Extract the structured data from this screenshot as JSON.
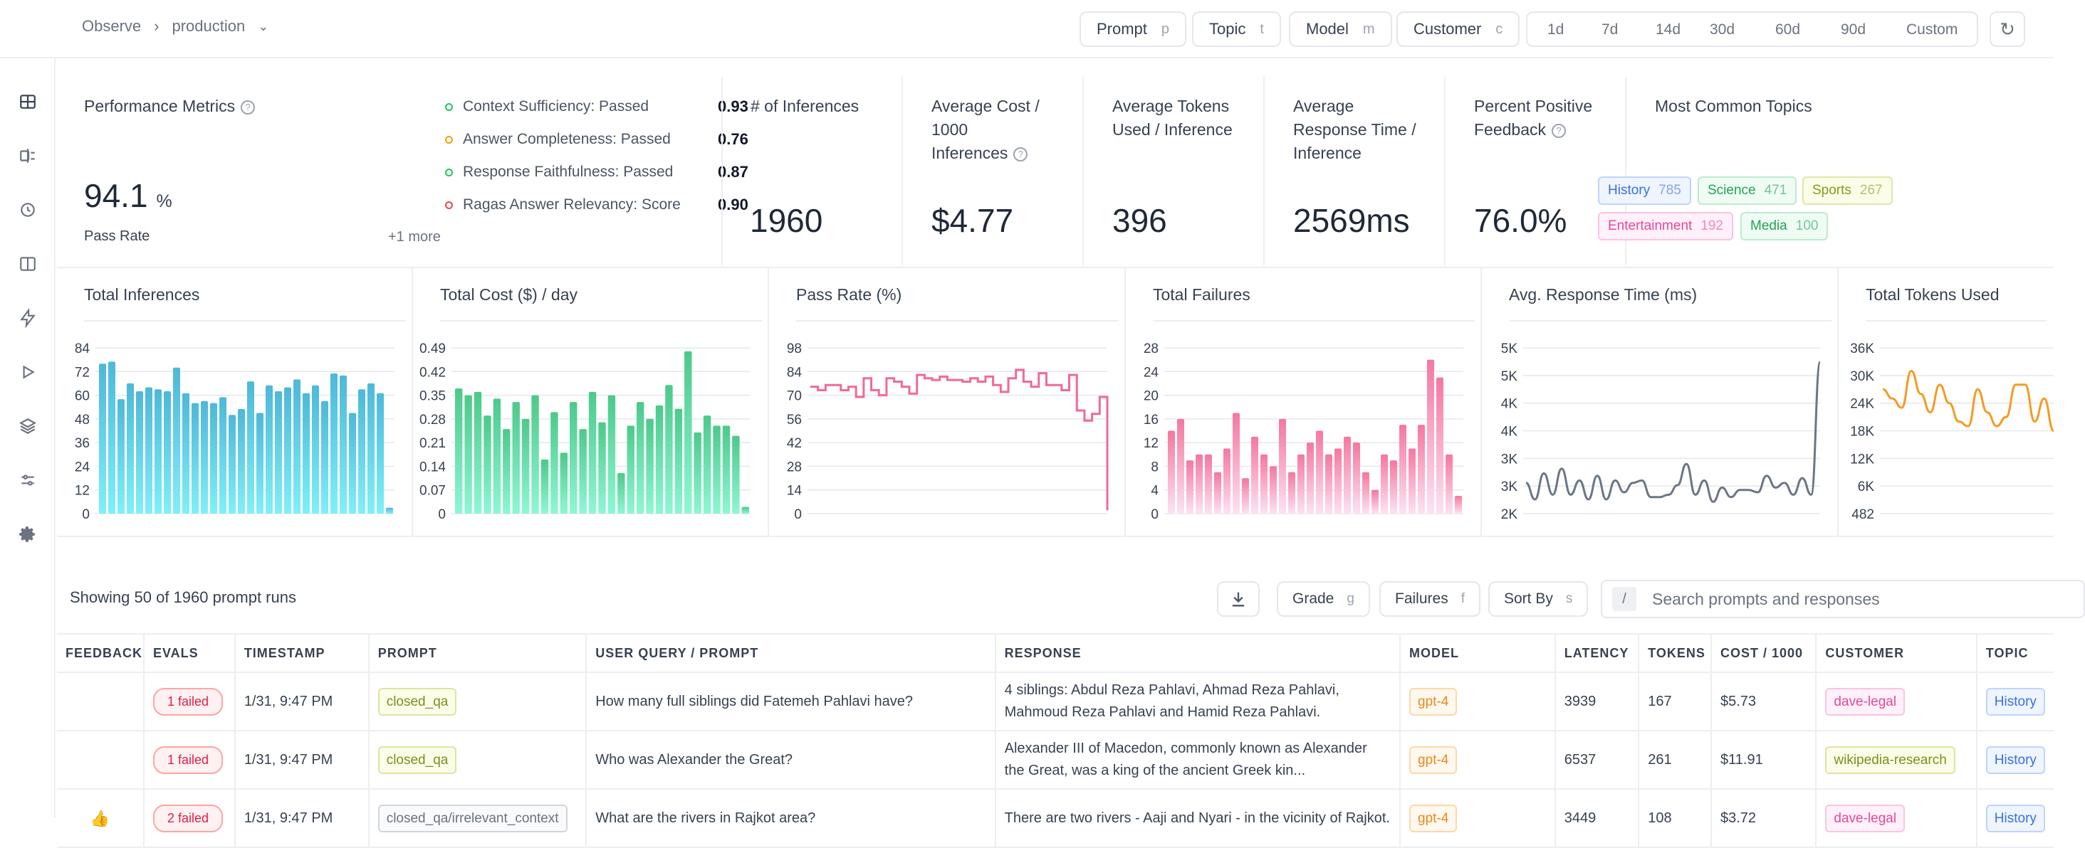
{
  "breadcrumb": {
    "root": "Observe",
    "project": "production"
  },
  "filters": [
    {
      "label": "Prompt",
      "key": "p"
    },
    {
      "label": "Topic",
      "key": "t"
    },
    {
      "label": "Model",
      "key": "m"
    },
    {
      "label": "Customer",
      "key": "c"
    }
  ],
  "ranges": [
    "1d",
    "7d",
    "14d",
    "30d",
    "60d",
    "90d",
    "Custom"
  ],
  "performance": {
    "title": "Performance Metrics",
    "pass_rate": "94.1",
    "pass_rate_unit": "%",
    "pass_rate_label": "Pass Rate",
    "evals": [
      {
        "label": "Context Sufficiency: Passed",
        "score": "0.93",
        "color": "#22c55e"
      },
      {
        "label": "Answer Completeness: Passed",
        "score": "0.76",
        "color": "#f59e0b"
      },
      {
        "label": "Response Faithfulness: Passed",
        "score": "0.87",
        "color": "#22c55e"
      },
      {
        "label": "Ragas Answer Relevancy: Score",
        "score": "0.90",
        "color": "#ef4444"
      }
    ],
    "more": "+1 more"
  },
  "stats": {
    "inferences": {
      "title": "# of Inferences",
      "value": "1960"
    },
    "avg_cost": {
      "title_1": "Average Cost /",
      "title_2": "1000",
      "title_3": "Inferences",
      "value": "$4.77"
    },
    "avg_tokens": {
      "title_1": "Average Tokens",
      "title_2": "Used / Inference",
      "value": "396"
    },
    "avg_response": {
      "title_1": "Average",
      "title_2": "Response Time /",
      "title_3": "Inference",
      "value": "2569ms"
    },
    "positive_feedback": {
      "title_1": "Percent Positive",
      "title_2": "Feedback",
      "value": "76.0%"
    }
  },
  "topics": {
    "title": "Most Common Topics",
    "items": [
      {
        "name": "History",
        "count": "785",
        "color": "#3b6fe0",
        "bg": "#eff5ff",
        "border": "#bfd4fd"
      },
      {
        "name": "Science",
        "count": "471",
        "color": "#22a355",
        "bg": "#effcf4",
        "border": "#bdebcf"
      },
      {
        "name": "Sports",
        "count": "267",
        "color": "#8a9a1a",
        "bg": "#fbfde8",
        "border": "#dde8a8"
      },
      {
        "name": "Entertainment",
        "count": "192",
        "color": "#e5489b",
        "bg": "#fff0f9",
        "border": "#f9c4e4"
      },
      {
        "name": "Media",
        "count": "100",
        "color": "#22a355",
        "bg": "#effcf4",
        "border": "#bdebcf"
      }
    ]
  },
  "chart_data": [
    {
      "type": "bar",
      "title": "Total Inferences",
      "color_top": "#4db8d8",
      "color_bottom": "#7ff0f8",
      "yticks": [
        "0",
        "12",
        "24",
        "36",
        "48",
        "60",
        "72",
        "84"
      ],
      "ylim": [
        0,
        84
      ],
      "values": [
        76,
        77,
        58,
        66,
        62,
        64,
        63,
        62,
        74,
        61,
        56,
        57,
        56,
        59,
        50,
        53,
        67,
        51,
        65,
        62,
        64,
        68,
        61,
        65,
        57,
        71,
        70,
        51,
        63,
        66,
        61,
        3
      ]
    },
    {
      "type": "bar",
      "title": "Total Cost ($) / day",
      "color_top": "#4cc98a",
      "color_bottom": "#8ef7d4",
      "yticks": [
        "0",
        "0.07",
        "0.14",
        "0.21",
        "0.28",
        "0.35",
        "0.42",
        "0.49"
      ],
      "ylim": [
        0,
        0.49
      ],
      "values": [
        0.37,
        0.35,
        0.36,
        0.29,
        0.34,
        0.25,
        0.33,
        0.28,
        0.35,
        0.16,
        0.3,
        0.18,
        0.33,
        0.25,
        0.36,
        0.27,
        0.35,
        0.12,
        0.26,
        0.33,
        0.28,
        0.32,
        0.38,
        0.31,
        0.48,
        0.24,
        0.29,
        0.26,
        0.26,
        0.23,
        0.02
      ]
    },
    {
      "type": "line",
      "title": "Pass Rate (%)",
      "color": "#f06a96",
      "step": true,
      "yticks": [
        "0",
        "14",
        "28",
        "42",
        "56",
        "70",
        "84",
        "98"
      ],
      "ylim": [
        0,
        98
      ],
      "values": [
        75,
        73,
        76,
        76,
        73,
        75,
        69,
        80,
        73,
        70,
        80,
        78,
        75,
        71,
        82,
        80,
        79,
        81,
        79,
        79,
        78,
        80,
        78,
        81,
        76,
        72,
        80,
        85,
        78,
        75,
        83,
        76,
        76,
        73,
        82,
        61,
        55,
        59,
        69,
        2
      ]
    },
    {
      "type": "bar",
      "title": "Total Failures",
      "color_top": "#f5779e",
      "color_bottom": "#fde2f3",
      "yticks": [
        "0",
        "4",
        "8",
        "12",
        "16",
        "20",
        "24",
        "28"
      ],
      "ylim": [
        0,
        28
      ],
      "values": [
        14,
        16,
        9,
        10,
        10,
        7,
        11,
        17,
        6,
        13,
        10,
        8,
        16,
        7,
        10,
        12,
        14,
        10,
        11,
        13,
        12,
        7,
        4,
        10,
        9,
        15,
        11,
        15,
        26,
        23,
        10,
        3
      ]
    },
    {
      "type": "line",
      "title": "Avg. Response Time (ms)",
      "color": "#6b7685",
      "step": false,
      "yticks": [
        "2K",
        "3K",
        "3K",
        "4K",
        "4K",
        "5K",
        "5K"
      ],
      "ylim": [
        2,
        5.5
      ],
      "values": [
        2.65,
        2.3,
        2.85,
        2.4,
        2.95,
        2.4,
        2.7,
        2.3,
        2.8,
        2.3,
        2.7,
        2.45,
        2.65,
        2.7,
        2.35,
        2.35,
        2.4,
        2.6,
        3.05,
        2.4,
        2.7,
        2.25,
        2.55,
        2.35,
        2.5,
        2.5,
        2.45,
        2.8,
        2.55,
        2.65,
        2.4,
        2.75,
        2.4,
        5.2
      ]
    },
    {
      "type": "line",
      "title": "Total Tokens Used",
      "color": "#f59a23",
      "step": false,
      "yticks": [
        "482",
        "6K",
        "12K",
        "18K",
        "24K",
        "30K",
        "36K"
      ],
      "ylim": [
        0,
        36
      ],
      "values": [
        27,
        25,
        23,
        31,
        26,
        22,
        28,
        24,
        20,
        19,
        27,
        22,
        19,
        21,
        28,
        28,
        20,
        25,
        18
      ]
    }
  ],
  "table": {
    "showing": "Showing 50 of 1960 prompt runs",
    "tools": [
      {
        "label": "Grade",
        "key": "g"
      },
      {
        "label": "Failures",
        "key": "f"
      },
      {
        "label": "Sort By",
        "key": "s"
      }
    ],
    "search_slash": "/",
    "search_placeholder": "Search prompts and responses",
    "headers": [
      "FEEDBACK",
      "EVALS",
      "TIMESTAMP",
      "PROMPT",
      "USER QUERY / PROMPT",
      "RESPONSE",
      "MODEL",
      "LATENCY",
      "TOKENS",
      "COST / 1000",
      "CUSTOMER",
      "TOPIC"
    ],
    "rows": [
      {
        "feedback": "",
        "evals": "1 failed",
        "timestamp": "1/31, 9:47 PM",
        "prompt": "closed_qa",
        "query": "How many full siblings did Fatemeh Pahlavi have?",
        "response": "4 siblings: Abdul Reza Pahlavi, Ahmad Reza Pahlavi, Mahmoud Reza Pahlavi and Hamid Reza Pahlavi.",
        "model": "gpt-4",
        "latency": "3939",
        "tokens": "167",
        "cost": "$5.73",
        "customer": "dave-legal",
        "topic": "History"
      },
      {
        "feedback": "",
        "evals": "1 failed",
        "timestamp": "1/31, 9:47 PM",
        "prompt": "closed_qa",
        "query": "Who was Alexander the Great?",
        "response": "Alexander III of Macedon, commonly known as Alexander the Great, was a king of the ancient Greek kin...",
        "model": "gpt-4",
        "latency": "6537",
        "tokens": "261",
        "cost": "$11.91",
        "customer": "wikipedia-research",
        "topic": "History"
      },
      {
        "feedback": "👍",
        "evals": "2 failed",
        "timestamp": "1/31, 9:47 PM",
        "prompt": "closed_qa/irrelevant_context",
        "query": "What are the rivers in Rajkot area?",
        "response": "There are two rivers - Aaji and Nyari - in the vicinity of Rajkot.",
        "model": "gpt-4",
        "latency": "3449",
        "tokens": "108",
        "cost": "$3.72",
        "customer": "dave-legal",
        "topic": "History"
      }
    ]
  }
}
